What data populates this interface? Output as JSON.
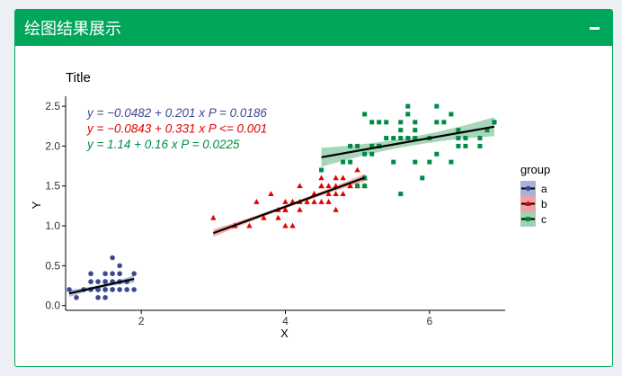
{
  "panel": {
    "title": "绘图结果展示",
    "collapse_icon": "minus-icon",
    "accent": "#00a65a"
  },
  "chart_data": {
    "type": "scatter",
    "title": "Title",
    "xlabel": "X",
    "ylabel": "Y",
    "xlim": [
      0.95,
      7.05
    ],
    "ylim": [
      -0.06,
      2.58
    ],
    "xticks": [
      2,
      4,
      6
    ],
    "yticks": [
      0.0,
      0.5,
      1.0,
      1.5,
      2.0,
      2.5
    ],
    "ytick_labels": [
      "0.0",
      "0.5",
      "1.0",
      "1.5",
      "2.0",
      "2.5"
    ],
    "legend": {
      "title": "group",
      "position": "right"
    },
    "series": [
      {
        "name": "a",
        "color": "#3b4992",
        "fill": "#aab1d6",
        "shape": "circle",
        "x": [
          1.0,
          1.1,
          1.2,
          1.3,
          1.3,
          1.3,
          1.4,
          1.4,
          1.4,
          1.4,
          1.5,
          1.5,
          1.5,
          1.5,
          1.5,
          1.6,
          1.6,
          1.6,
          1.6,
          1.7,
          1.7,
          1.7,
          1.8,
          1.8,
          1.9,
          1.9,
          1.4,
          1.5,
          1.6,
          1.5,
          1.7
        ],
        "y": [
          0.2,
          0.1,
          0.2,
          0.2,
          0.3,
          0.4,
          0.1,
          0.2,
          0.3,
          0.2,
          0.2,
          0.3,
          0.4,
          0.2,
          0.1,
          0.2,
          0.4,
          0.6,
          0.3,
          0.2,
          0.4,
          0.5,
          0.3,
          0.2,
          0.4,
          0.2,
          0.2,
          0.3,
          0.2,
          0.2,
          0.3
        ],
        "fit": {
          "x": [
            1.0,
            1.9
          ],
          "intercept": -0.0482,
          "slope": 0.201,
          "band_se": 0.045
        }
      },
      {
        "name": "b",
        "color": "#e30000",
        "fill": "#f2a0a0",
        "shape": "triangle",
        "x": [
          3.0,
          3.3,
          3.5,
          3.6,
          3.7,
          3.8,
          3.9,
          3.9,
          4.0,
          4.0,
          4.1,
          4.1,
          4.2,
          4.2,
          4.3,
          4.4,
          4.4,
          4.5,
          4.5,
          4.6,
          4.6,
          4.7,
          4.7,
          4.8,
          4.8,
          4.9,
          5.0,
          5.0,
          5.1,
          5.1,
          4.5,
          4.0,
          3.3,
          4.9,
          4.6,
          4.5,
          4.4,
          4.1,
          4.0,
          4.4,
          5.1,
          4.7,
          4.7,
          4.5,
          4.2
        ],
        "y": [
          1.1,
          1.0,
          1.0,
          1.3,
          1.1,
          1.4,
          1.1,
          1.2,
          1.0,
          1.3,
          1.0,
          1.3,
          1.2,
          1.5,
          1.3,
          1.3,
          1.4,
          1.5,
          1.3,
          1.4,
          1.5,
          1.4,
          1.5,
          1.4,
          1.6,
          1.5,
          1.5,
          1.7,
          1.6,
          1.5,
          1.6,
          1.2,
          1.0,
          1.5,
          1.3,
          1.5,
          1.4,
          1.3,
          1.2,
          1.4,
          1.6,
          1.2,
          1.6,
          1.5,
          1.3
        ],
        "fit": {
          "x": [
            3.0,
            5.1
          ],
          "intercept": -0.0843,
          "slope": 0.331,
          "band_se": 0.045
        }
      },
      {
        "name": "c",
        "color": "#008b45",
        "fill": "#9fd1b2",
        "shape": "square",
        "x": [
          4.5,
          4.8,
          4.9,
          4.9,
          5.0,
          5.0,
          5.1,
          5.1,
          5.1,
          5.2,
          5.3,
          5.3,
          5.4,
          5.4,
          5.5,
          5.5,
          5.6,
          5.6,
          5.6,
          5.7,
          5.7,
          5.8,
          5.8,
          5.8,
          5.9,
          6.0,
          6.0,
          6.1,
          6.1,
          6.2,
          6.3,
          6.3,
          6.4,
          6.4,
          6.5,
          6.7,
          6.7,
          6.9,
          6.9,
          5.1,
          5.2,
          5.3,
          5.6,
          5.7,
          5.8,
          6.1,
          6.4,
          6.5,
          6.8,
          5.2
        ],
        "y": [
          1.7,
          1.8,
          1.8,
          2.0,
          1.5,
          2.0,
          1.6,
          1.9,
          2.4,
          2.3,
          2.3,
          2.0,
          2.1,
          2.3,
          1.8,
          2.1,
          1.4,
          2.2,
          2.1,
          2.4,
          2.5,
          2.2,
          1.8,
          2.3,
          1.6,
          2.1,
          1.8,
          2.5,
          1.9,
          2.3,
          1.8,
          2.4,
          2.2,
          2.1,
          2.0,
          2.0,
          2.1,
          2.3,
          2.3,
          1.5,
          2.0,
          2.0,
          2.3,
          2.1,
          2.1,
          2.3,
          2.0,
          2.1,
          2.2,
          1.9
        ],
        "fit": {
          "x": [
            4.5,
            6.9
          ],
          "intercept": 1.14,
          "slope": 0.16,
          "band_se": 0.12
        }
      }
    ],
    "annotations": [
      {
        "text": "y = −0.0482 + 0.201  x    P = 0.0186",
        "color": "#3b4992"
      },
      {
        "text": "y = −0.0843 + 0.331  x    P <= 0.001",
        "color": "#e30000"
      },
      {
        "text": "y = 1.14 + 0.16  x    P = 0.0225",
        "color": "#008b45"
      }
    ]
  }
}
